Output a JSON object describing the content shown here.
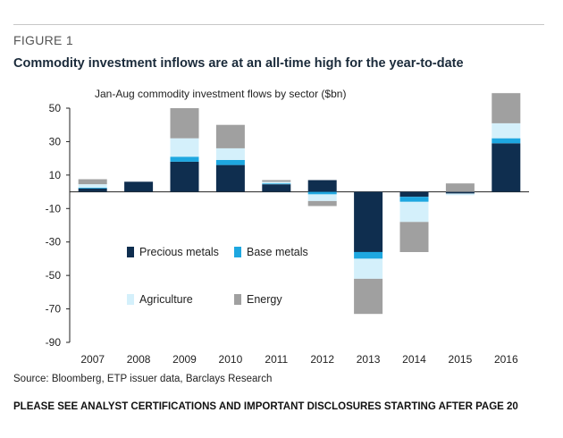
{
  "figure_label": "FIGURE 1",
  "title": "Commodity investment inflows are at an all-time high for the year-to-date",
  "source": "Source: Bloomberg, ETP issuer data, Barclays Research",
  "disclosure": "PLEASE SEE ANALYST CERTIFICATIONS AND IMPORTANT DISCLOSURES STARTING AFTER PAGE 20",
  "chart_data": {
    "type": "bar",
    "stacked": true,
    "subtitle": "Jan-Aug commodity investment flows by sector ($bn)",
    "categories": [
      "2007",
      "2008",
      "2009",
      "2010",
      "2011",
      "2012",
      "2013",
      "2014",
      "2015",
      "2016"
    ],
    "ylim": [
      -90,
      50
    ],
    "yticks": [
      50,
      30,
      10,
      -10,
      -30,
      -50,
      -70,
      -90
    ],
    "grid": false,
    "legend_placement": "inside-lower-left",
    "series": [
      {
        "name": "Precious metals",
        "color": "#0f2e4f",
        "values": [
          2,
          6,
          18,
          16,
          4.5,
          7,
          -36,
          -3,
          -1,
          29
        ]
      },
      {
        "name": "Base metals",
        "color": "#1ea7e0",
        "values": [
          0.5,
          0,
          3,
          3,
          0.5,
          -1.5,
          -4,
          -3,
          0,
          3
        ]
      },
      {
        "name": "Agriculture",
        "color": "#d4f0fb",
        "values": [
          2,
          0,
          11,
          7,
          1,
          -4,
          -12,
          -12,
          -1,
          9
        ]
      },
      {
        "name": "Energy",
        "color": "#a0a0a0",
        "values": [
          3,
          0,
          18,
          14,
          1,
          -3,
          -21,
          -18,
          5,
          18
        ]
      }
    ]
  }
}
